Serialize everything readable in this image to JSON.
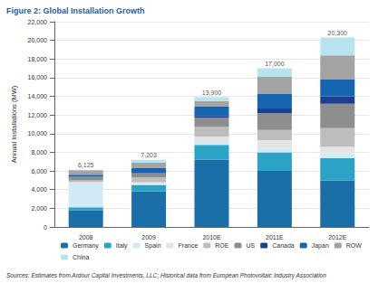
{
  "chart_data": {
    "type": "bar",
    "stacked": true,
    "title": "Figure 2: Global Installation Growth",
    "y_label": "Annual Installations (MW)",
    "source": "Sources: Estimates from Ardour Capital Investments, LLC; Historical data from European Photovoltaic Industry Association",
    "categories": [
      "2008",
      "2009",
      "2010E",
      "2011E",
      "2012E"
    ],
    "series": [
      {
        "name": "Germany",
        "color": "#1b6fa8",
        "values": [
          1800,
          3800,
          7200,
          6000,
          5000
        ]
      },
      {
        "name": "Italy",
        "color": "#2aa3c6",
        "values": [
          300,
          700,
          1600,
          2000,
          2400
        ]
      },
      {
        "name": "Spain",
        "color": "#d2eaf6",
        "values": [
          2600,
          100,
          300,
          500,
          500
        ]
      },
      {
        "name": "France",
        "color": "#e4e4e4",
        "values": [
          100,
          200,
          600,
          800,
          700
        ]
      },
      {
        "name": "ROE",
        "color": "#bdbdbd",
        "values": [
          200,
          500,
          1000,
          1100,
          2000
        ]
      },
      {
        "name": "US",
        "color": "#8e8e8e",
        "values": [
          350,
          450,
          1000,
          1800,
          2600
        ]
      },
      {
        "name": "Canada",
        "color": "#1d3f8f",
        "values": [
          25,
          50,
          200,
          500,
          800
        ]
      },
      {
        "name": "Japan",
        "color": "#1565b0",
        "values": [
          230,
          500,
          1000,
          1600,
          1800
        ]
      },
      {
        "name": "ROW",
        "color": "#a3a3a3",
        "values": [
          475,
          600,
          600,
          1800,
          2600
        ]
      },
      {
        "name": "China",
        "color": "#b8e4f0",
        "values": [
          45,
          303,
          400,
          900,
          1900
        ]
      }
    ],
    "totals": [
      6125,
      7203,
      13900,
      17000,
      20300
    ],
    "total_labels": [
      "6,125",
      "7,203",
      "13,900",
      "17,000",
      "20,300"
    ],
    "ylim": [
      0,
      22000
    ],
    "yticks": [
      0,
      {
        "value": 2000,
        "label": "2,000"
      },
      {
        "value": 4000,
        "label": "4,000"
      },
      {
        "value": 6000,
        "label": "6,000"
      },
      {
        "value": 8000,
        "label": "8,000"
      },
      {
        "value": 10000,
        "label": "10,000"
      },
      {
        "value": 12000,
        "label": "12,000"
      },
      {
        "value": 14000,
        "label": "14,000"
      },
      {
        "value": 16000,
        "label": "16,000"
      },
      {
        "value": 18000,
        "label": "18,000"
      },
      {
        "value": 20000,
        "label": "20,000"
      },
      {
        "value": 22000,
        "label": "22,000"
      }
    ],
    "grid": true,
    "legend": "bottom"
  }
}
